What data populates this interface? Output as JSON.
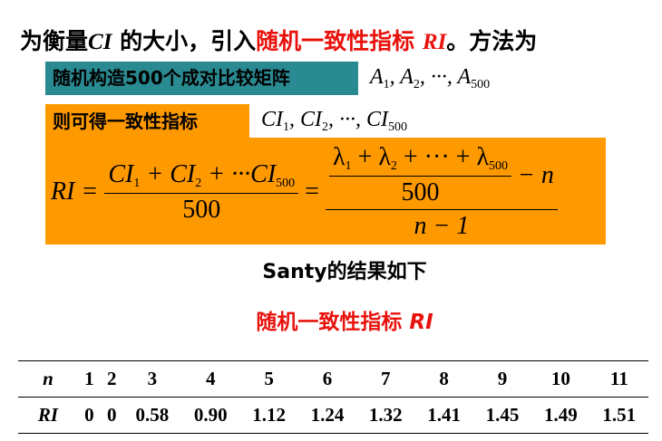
{
  "title": {
    "parts": [
      "为衡量",
      "CI",
      " 的大小，引入",
      "随机一致性指标 ",
      "RI",
      "。方法为"
    ]
  },
  "step1": {
    "label": "随机构造500个成对比较矩阵",
    "math": [
      {
        "text": "A",
        "sub": "1"
      },
      {
        "text": ", "
      },
      {
        "text": "A",
        "sub": "2"
      },
      {
        "text": ", ···, "
      },
      {
        "text": "A",
        "sub": "500"
      }
    ]
  },
  "step2": {
    "label": "则可得一致性指标",
    "math": [
      {
        "text": "CI",
        "sub": "1"
      },
      {
        "text": ", "
      },
      {
        "text": "CI",
        "sub": "2"
      },
      {
        "text": ", ···, "
      },
      {
        "text": "CI",
        "sub": "500"
      }
    ]
  },
  "formula": {
    "lhs": "RI =",
    "frac1_num": [
      {
        "text": "CI",
        "sub": "1"
      },
      {
        "text": " + "
      },
      {
        "text": "CI",
        "sub": "2"
      },
      {
        "text": " + ···"
      },
      {
        "text": "CI",
        "sub": "500"
      }
    ],
    "frac1_den": "500",
    "equals": "=",
    "inner_num": [
      {
        "text": "λ",
        "sub": "1"
      },
      {
        "text": " + "
      },
      {
        "text": "λ",
        "sub": "2"
      },
      {
        "text": " + ··· + "
      },
      {
        "text": "λ",
        "sub": "500"
      }
    ],
    "inner_den": "500",
    "minus_n": "− n",
    "frac2_den": "n − 1"
  },
  "result_heading": "Santy的结果如下",
  "ri_heading": {
    "text": "随机一致性指标 ",
    "symbol": "RI"
  },
  "table": {
    "rows": [
      [
        "n",
        "1",
        "2",
        "3",
        "4",
        "5",
        "6",
        "7",
        "8",
        "9",
        "10",
        "11"
      ],
      [
        "RI",
        "0",
        "0",
        "0.58",
        "0.90",
        "1.12",
        "1.24",
        "1.32",
        "1.41",
        "1.45",
        "1.49",
        "1.51"
      ]
    ]
  }
}
